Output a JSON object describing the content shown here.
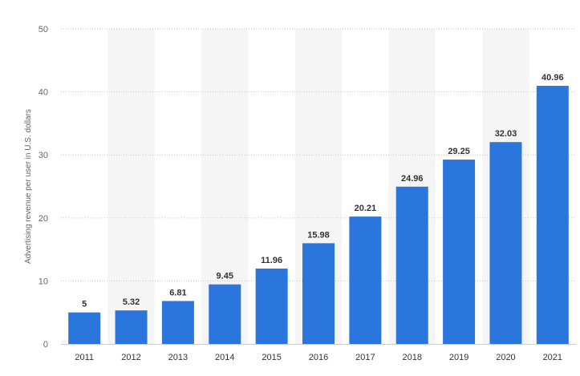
{
  "chart_data": {
    "type": "bar",
    "title": "",
    "xlabel": "",
    "ylabel": "Advertising revenue per user in U.S. dollars",
    "categories": [
      "2011",
      "2012",
      "2013",
      "2014",
      "2015",
      "2016",
      "2017",
      "2018",
      "2019",
      "2020",
      "2021"
    ],
    "values": [
      5,
      5.32,
      6.81,
      9.45,
      11.96,
      15.98,
      20.21,
      24.96,
      29.25,
      32.03,
      40.96
    ],
    "value_labels": [
      "5",
      "5.32",
      "6.81",
      "9.45",
      "11.96",
      "15.98",
      "20.21",
      "24.96",
      "29.25",
      "32.03",
      "40.96"
    ],
    "ylim": [
      0,
      50
    ],
    "yticks": [
      0,
      10,
      20,
      30,
      40,
      50
    ],
    "ytick_labels": [
      "0",
      "10",
      "20",
      "30",
      "40",
      "50"
    ],
    "grid": true,
    "grid_style": "dotted",
    "alternating_band_color": "#f5f5f5",
    "bar_color": "#2a76dd"
  }
}
